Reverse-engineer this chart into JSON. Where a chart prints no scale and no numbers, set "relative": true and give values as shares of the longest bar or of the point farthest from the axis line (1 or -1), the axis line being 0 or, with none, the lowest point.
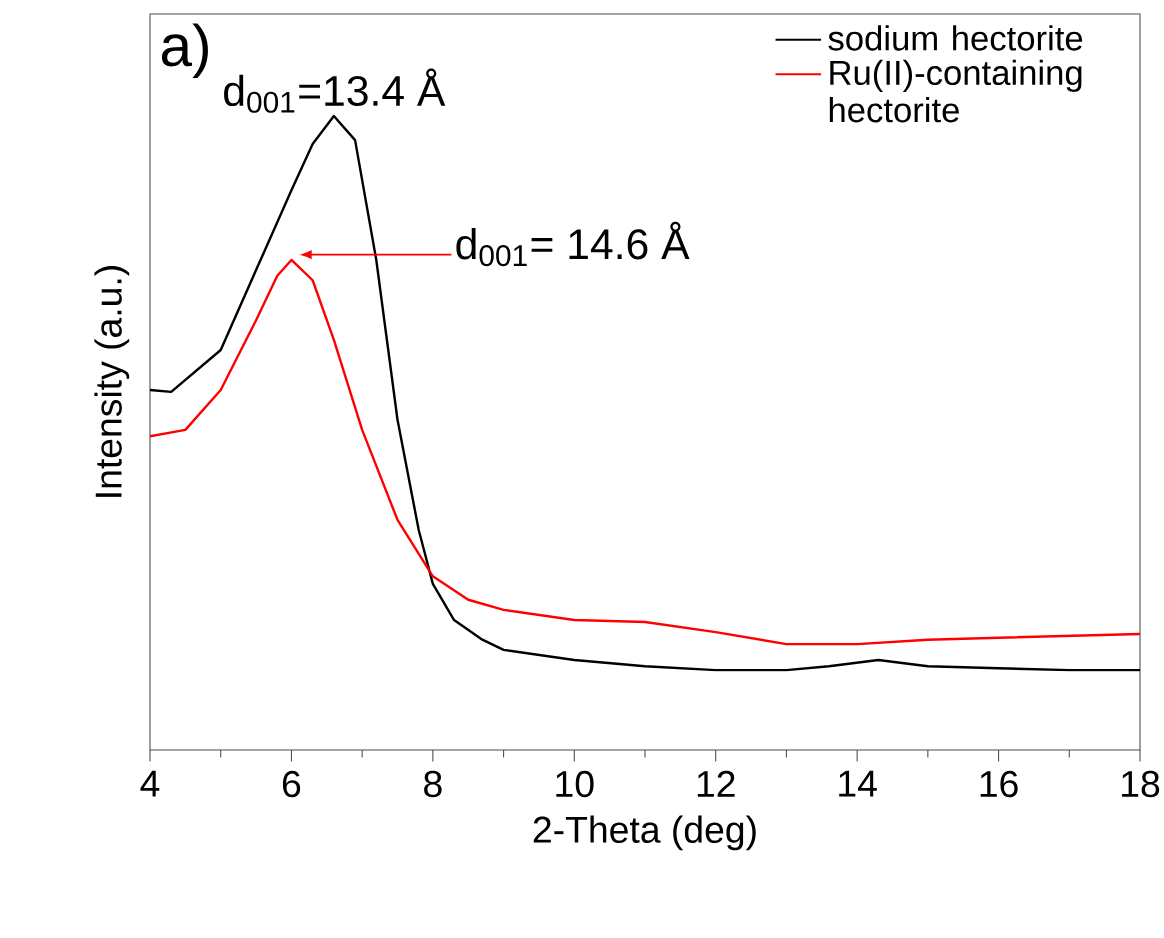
{
  "chart_data": {
    "type": "line",
    "relative": true,
    "xlabel": "2-Theta (deg)",
    "ylabel": "Intensity (a.u.)",
    "xlim": [
      4,
      18
    ],
    "xticks": [
      4,
      6,
      8,
      10,
      12,
      14,
      16,
      18
    ],
    "legend": "top right",
    "annotations": [
      "a)",
      {
        "text": "d$_{001}$=13.4 Å",
        "x": 6.6,
        "y": 1.0
      },
      "d$_{001}$= 14.6 Å"
    ],
    "series": [
      {
        "name": "sodium hectorite",
        "color": "#000000",
        "x": [
          4,
          4.3,
          5,
          5.5,
          6,
          6.3,
          6.6,
          6.9,
          7.2,
          7.5,
          7.8,
          8,
          8.3,
          8.7,
          9,
          10,
          11,
          12,
          13,
          13.6,
          14.3,
          15,
          16,
          17,
          18
        ],
        "values": [
          0.568,
          0.565,
          0.631,
          0.757,
          0.883,
          0.956,
          1.0,
          0.962,
          0.773,
          0.521,
          0.347,
          0.262,
          0.205,
          0.174,
          0.158,
          0.142,
          0.132,
          0.126,
          0.126,
          0.132,
          0.142,
          0.132,
          0.129,
          0.126,
          0.126
        ]
      },
      {
        "name": "Ru(II)-containing hectorite",
        "color": "#ff0000",
        "x": [
          4,
          4.5,
          5,
          5.5,
          5.8,
          6,
          6.3,
          6.6,
          7,
          7.5,
          8,
          8.5,
          9,
          10,
          11,
          12,
          13,
          14,
          15,
          16,
          17,
          18
        ],
        "values": [
          0.495,
          0.505,
          0.568,
          0.678,
          0.748,
          0.773,
          0.741,
          0.647,
          0.505,
          0.363,
          0.274,
          0.237,
          0.221,
          0.205,
          0.202,
          0.186,
          0.167,
          0.167,
          0.174,
          0.177,
          0.18,
          0.183
        ]
      }
    ]
  }
}
